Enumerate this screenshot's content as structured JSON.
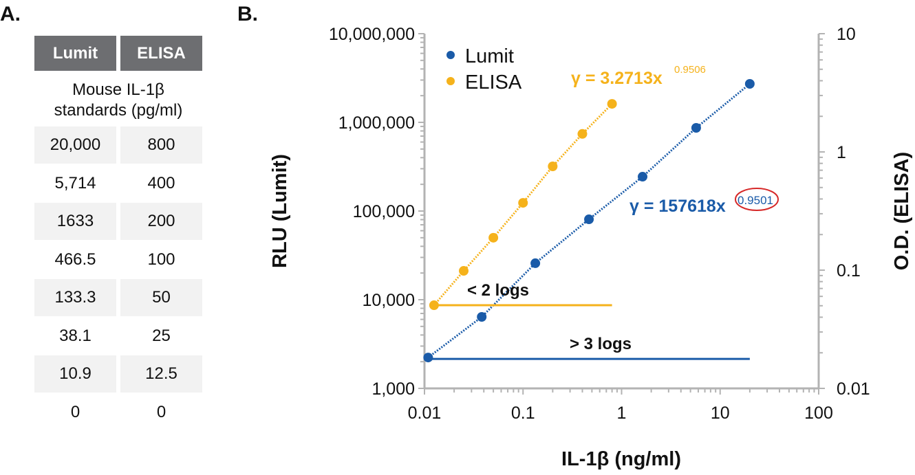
{
  "panel_a": {
    "label": "A.",
    "headers": [
      "Lumit",
      "ELISA"
    ],
    "subheader_line1": "Mouse IL-1β",
    "subheader_line2": "standards (pg/ml)",
    "rows": [
      [
        "20,000",
        "800"
      ],
      [
        "5,714",
        "400"
      ],
      [
        "1633",
        "200"
      ],
      [
        "466.5",
        "100"
      ],
      [
        "133.3",
        "50"
      ],
      [
        "38.1",
        "25"
      ],
      [
        "10.9",
        "12.5"
      ],
      [
        "0",
        "0"
      ]
    ]
  },
  "panel_b": {
    "label": "B."
  },
  "chart_data": {
    "type": "scatter",
    "xlabel": "IL-1β (ng/ml)",
    "ylabel": "RLU (Lumit)",
    "y2label": "O.D. (ELISA)",
    "x_scale": "log",
    "y_scale": "log",
    "y2_scale": "log",
    "xlim": [
      0.01,
      100
    ],
    "ylim": [
      1000,
      10000000
    ],
    "y2lim": [
      0.01,
      10
    ],
    "x_ticks": [
      "0.01",
      "0.1",
      "1",
      "10",
      "100"
    ],
    "y_ticks": [
      "1,000",
      "10,000",
      "100,000",
      "1,000,000",
      "10,000,000"
    ],
    "y2_ticks": [
      "0.01",
      "0.1",
      "1",
      "10"
    ],
    "grid": false,
    "legend_placement": "top-left",
    "colors": {
      "Lumit": "#1a5ba8",
      "ELISA": "#f5b21b",
      "axis": "#b3b3b3",
      "highlight": "#d62828"
    },
    "series": [
      {
        "name": "Lumit",
        "axis": "left",
        "x": [
          0.0109,
          0.0381,
          0.1333,
          0.4665,
          1.633,
          5.714,
          20.0
        ],
        "y": [
          2230,
          6400,
          25800,
          80700,
          244000,
          867000,
          2720000
        ],
        "fit": "γ = 157618x",
        "fit_exponent": "0.9501"
      },
      {
        "name": "ELISA",
        "axis": "right",
        "x": [
          0.0125,
          0.025,
          0.05,
          0.1,
          0.2,
          0.4,
          0.8
        ],
        "y": [
          0.0505,
          0.0986,
          0.188,
          0.371,
          0.755,
          1.42,
          2.55
        ],
        "fit": "γ = 3.2713x",
        "fit_exponent": "0.9506"
      }
    ],
    "annotations": [
      {
        "text": "< 2 logs",
        "series": "ELISA",
        "x_range": [
          0.0125,
          0.8
        ]
      },
      {
        "text": "> 3 logs",
        "series": "Lumit",
        "x_range": [
          0.0109,
          20.0
        ]
      }
    ]
  }
}
